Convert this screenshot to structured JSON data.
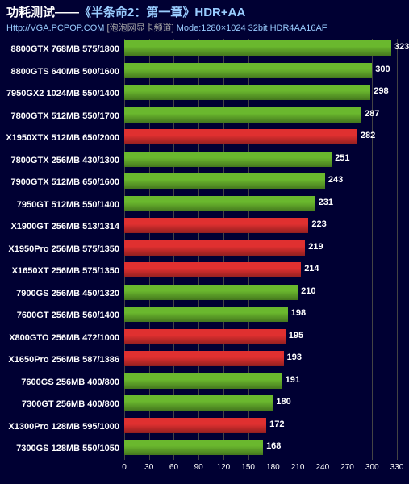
{
  "header": {
    "title_prefix": "功耗测试——",
    "title_game": "《半条命2：第一章》",
    "title_suffix": "HDR+AA",
    "sub_url": "Http://VGA.PCPOP.COM",
    "sub_channel": " [泡泡网显卡频道] ",
    "sub_mode": "Mode:1280×1024 32bit HDR4AA16AF"
  },
  "chart": {
    "xmax": 323,
    "grid_step": 30,
    "grid_max": 330,
    "grid_color": "#444444",
    "colors": {
      "green": "#6ab82e",
      "red": "#e03030"
    },
    "ticks": [
      0,
      30,
      60,
      90,
      120,
      150,
      180,
      210,
      240,
      270,
      300,
      330
    ],
    "rows": [
      {
        "label": "8800GTX 768MB 575/1800",
        "value": 323,
        "color": "green"
      },
      {
        "label": "8800GTS 640MB 500/1600",
        "value": 300,
        "color": "green"
      },
      {
        "label": "7950GX2 1024MB 550/1400",
        "value": 298,
        "color": "green"
      },
      {
        "label": "7800GTX 512MB 550/1700",
        "value": 287,
        "color": "green"
      },
      {
        "label": "X1950XTX 512MB 650/2000",
        "value": 282,
        "color": "red"
      },
      {
        "label": "7800GTX 256MB 430/1300",
        "value": 251,
        "color": "green"
      },
      {
        "label": "7900GTX 512MB 650/1600",
        "value": 243,
        "color": "green"
      },
      {
        "label": "7950GT 512MB 550/1400",
        "value": 231,
        "color": "green"
      },
      {
        "label": "X1900GT 256MB 513/1314",
        "value": 223,
        "color": "red"
      },
      {
        "label": "X1950Pro 256MB 575/1350",
        "value": 219,
        "color": "red"
      },
      {
        "label": "X1650XT 256MB 575/1350",
        "value": 214,
        "color": "red"
      },
      {
        "label": "7900GS 256MB 450/1320",
        "value": 210,
        "color": "green"
      },
      {
        "label": "7600GT 256MB 560/1400",
        "value": 198,
        "color": "green"
      },
      {
        "label": "X800GTO 256MB 472/1000",
        "value": 195,
        "color": "red"
      },
      {
        "label": "X1650Pro 256MB 587/1386",
        "value": 193,
        "color": "red"
      },
      {
        "label": "7600GS 256MB 400/800",
        "value": 191,
        "color": "green"
      },
      {
        "label": "7300GT 256MB 400/800",
        "value": 180,
        "color": "green"
      },
      {
        "label": "X1300Pro 128MB 595/1000",
        "value": 172,
        "color": "red"
      },
      {
        "label": "7300GS 128MB 550/1050",
        "value": 168,
        "color": "green"
      }
    ]
  }
}
